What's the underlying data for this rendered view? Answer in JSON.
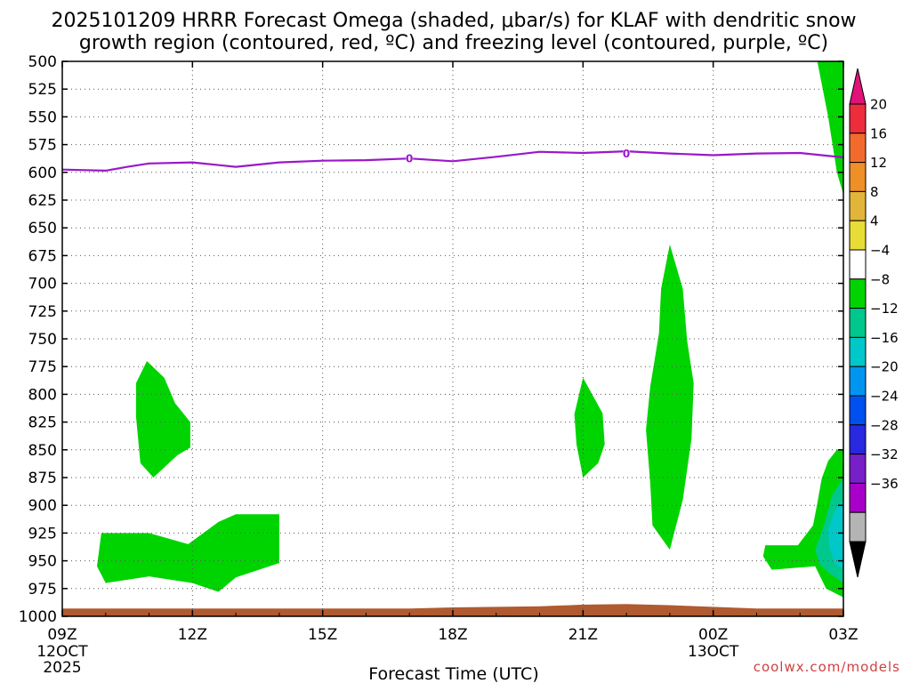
{
  "chart_data": {
    "type": "contour-cross-section",
    "title_line1": "2025101209 HRRR Forecast Omega (shaded, μbar/s) for KLAF with dendritic snow",
    "title_line2": "growth region (contoured, red, ºC) and freezing level (contoured, purple, ºC)",
    "xlabel": "Forecast Time (UTC)",
    "credit": "coolwx.com/models",
    "y_axis": {
      "units": "hPa",
      "range": [
        500,
        1000
      ],
      "ticks": [
        500,
        525,
        550,
        575,
        600,
        625,
        650,
        675,
        700,
        725,
        750,
        775,
        800,
        825,
        850,
        875,
        900,
        925,
        950,
        975,
        1000
      ]
    },
    "x_axis": {
      "units": "hours since 09Z 12 OCT 2025",
      "range": [
        0,
        18
      ],
      "ticks": [
        {
          "hour": 0,
          "label": "09Z",
          "sub1": "12OCT",
          "sub2": "2025"
        },
        {
          "hour": 3,
          "label": "12Z",
          "sub1": "",
          "sub2": ""
        },
        {
          "hour": 6,
          "label": "15Z",
          "sub1": "",
          "sub2": ""
        },
        {
          "hour": 9,
          "label": "18Z",
          "sub1": "",
          "sub2": ""
        },
        {
          "hour": 12,
          "label": "21Z",
          "sub1": "",
          "sub2": ""
        },
        {
          "hour": 15,
          "label": "00Z",
          "sub1": "13OCT",
          "sub2": ""
        },
        {
          "hour": 18,
          "label": "03Z",
          "sub1": "",
          "sub2": ""
        }
      ]
    },
    "colorbar": {
      "labels": [
        "20",
        "16",
        "12",
        "8",
        "4",
        "−4",
        "−8",
        "−12",
        "−16",
        "−20",
        "−24",
        "−28",
        "−32",
        "−36"
      ],
      "top_color": "#e0127a",
      "bottom_color": "#000000",
      "colors": [
        "#ee2d3c",
        "#f26b2c",
        "#ee8f28",
        "#e2b43a",
        "#e8dc36",
        "#ffffff",
        "#00d400",
        "#00c88c",
        "#00c8c8",
        "#0096f0",
        "#0050f0",
        "#2828e0",
        "#7820c8",
        "#a800c8",
        "#b4b4b4"
      ]
    },
    "freezing_level": {
      "color": "#9a18c8",
      "label": "0",
      "label_points": [
        [
          8.0,
          587.5
        ],
        [
          13.0,
          583
        ]
      ],
      "points": [
        [
          0,
          597.5
        ],
        [
          1.0,
          598.5
        ],
        [
          1.5,
          595
        ],
        [
          2.0,
          592
        ],
        [
          3.0,
          591
        ],
        [
          4.0,
          595
        ],
        [
          5.0,
          591
        ],
        [
          6.0,
          589.5
        ],
        [
          7.0,
          589
        ],
        [
          8.0,
          587.5
        ],
        [
          9.0,
          590
        ],
        [
          10.0,
          586
        ],
        [
          11.0,
          581.5
        ],
        [
          12.0,
          582.5
        ],
        [
          13.0,
          581
        ],
        [
          14.0,
          583
        ],
        [
          15.0,
          584.5
        ],
        [
          16.0,
          583
        ],
        [
          17.0,
          582.5
        ],
        [
          18.0,
          586.5
        ]
      ]
    },
    "omega_regions": [
      {
        "value_class": "-4 to -8",
        "color": "#00d400",
        "points": [
          [
            1.7,
            790
          ],
          [
            1.95,
            770
          ],
          [
            2.35,
            785
          ],
          [
            2.6,
            808
          ],
          [
            2.95,
            825
          ],
          [
            2.95,
            848
          ],
          [
            2.65,
            855
          ],
          [
            2.1,
            875
          ],
          [
            1.8,
            862
          ],
          [
            1.7,
            820
          ]
        ]
      },
      {
        "value_class": "-4 to -8",
        "color": "#00d400",
        "points": [
          [
            0.8,
            955
          ],
          [
            0.9,
            925
          ],
          [
            2.0,
            925
          ],
          [
            2.9,
            935
          ],
          [
            3.6,
            915
          ],
          [
            4.0,
            908
          ],
          [
            5.0,
            908
          ],
          [
            5.0,
            952
          ],
          [
            4.0,
            965
          ],
          [
            3.6,
            978
          ],
          [
            3.0,
            970
          ],
          [
            2.0,
            964
          ],
          [
            1.0,
            970
          ]
        ]
      },
      {
        "value_class": "-4 to -8",
        "color": "#00d400",
        "points": [
          [
            12.0,
            785
          ],
          [
            12.45,
            817
          ],
          [
            12.5,
            845
          ],
          [
            12.35,
            862
          ],
          [
            12.0,
            875
          ],
          [
            11.85,
            845
          ],
          [
            11.8,
            818
          ]
        ]
      },
      {
        "value_class": "-4 to -8",
        "color": "#00d400",
        "points": [
          [
            14.0,
            665
          ],
          [
            14.3,
            705
          ],
          [
            14.4,
            752
          ],
          [
            14.55,
            790
          ],
          [
            14.5,
            840
          ],
          [
            14.3,
            895
          ],
          [
            14.0,
            940
          ],
          [
            13.6,
            918
          ],
          [
            13.55,
            880
          ],
          [
            13.45,
            832
          ],
          [
            13.55,
            793
          ],
          [
            13.75,
            745
          ],
          [
            13.8,
            705
          ]
        ]
      },
      {
        "value_class": "-4 to -8",
        "color": "#00d400",
        "points": [
          [
            17.4,
            500
          ],
          [
            18.0,
            500
          ],
          [
            18.0,
            620
          ],
          [
            17.85,
            600
          ],
          [
            17.65,
            550
          ]
        ]
      },
      {
        "value_class": "-4 to -8",
        "color": "#00d400",
        "points": [
          [
            16.2,
            936
          ],
          [
            16.95,
            936
          ],
          [
            17.3,
            918
          ],
          [
            17.4,
            898
          ],
          [
            17.5,
            876
          ],
          [
            17.65,
            860
          ],
          [
            17.85,
            850
          ],
          [
            18.0,
            850
          ],
          [
            18.0,
            983
          ],
          [
            17.6,
            975
          ],
          [
            17.35,
            955
          ],
          [
            16.35,
            958
          ],
          [
            16.15,
            946
          ]
        ]
      },
      {
        "value_class": "-8 to -12",
        "color": "#00c88c",
        "points": [
          [
            17.35,
            940
          ],
          [
            17.55,
            918
          ],
          [
            17.75,
            890
          ],
          [
            18.0,
            875
          ],
          [
            18.0,
            970
          ],
          [
            17.7,
            962
          ],
          [
            17.45,
            953
          ]
        ]
      },
      {
        "value_class": "-12 to -16",
        "color": "#00c8c8",
        "points": [
          [
            17.65,
            922
          ],
          [
            17.8,
            905
          ],
          [
            18.0,
            895
          ],
          [
            18.0,
            958
          ],
          [
            17.8,
            952
          ],
          [
            17.68,
            938
          ]
        ]
      }
    ],
    "terrain": {
      "color": "#b05a30",
      "points": [
        [
          0,
          993
        ],
        [
          8.0,
          993
        ],
        [
          9.0,
          992
        ],
        [
          11.0,
          991
        ],
        [
          12.0,
          989.5
        ],
        [
          13.0,
          989
        ],
        [
          14.0,
          990
        ],
        [
          15.0,
          991.5
        ],
        [
          16.0,
          993
        ],
        [
          18.0,
          993
        ]
      ]
    }
  }
}
